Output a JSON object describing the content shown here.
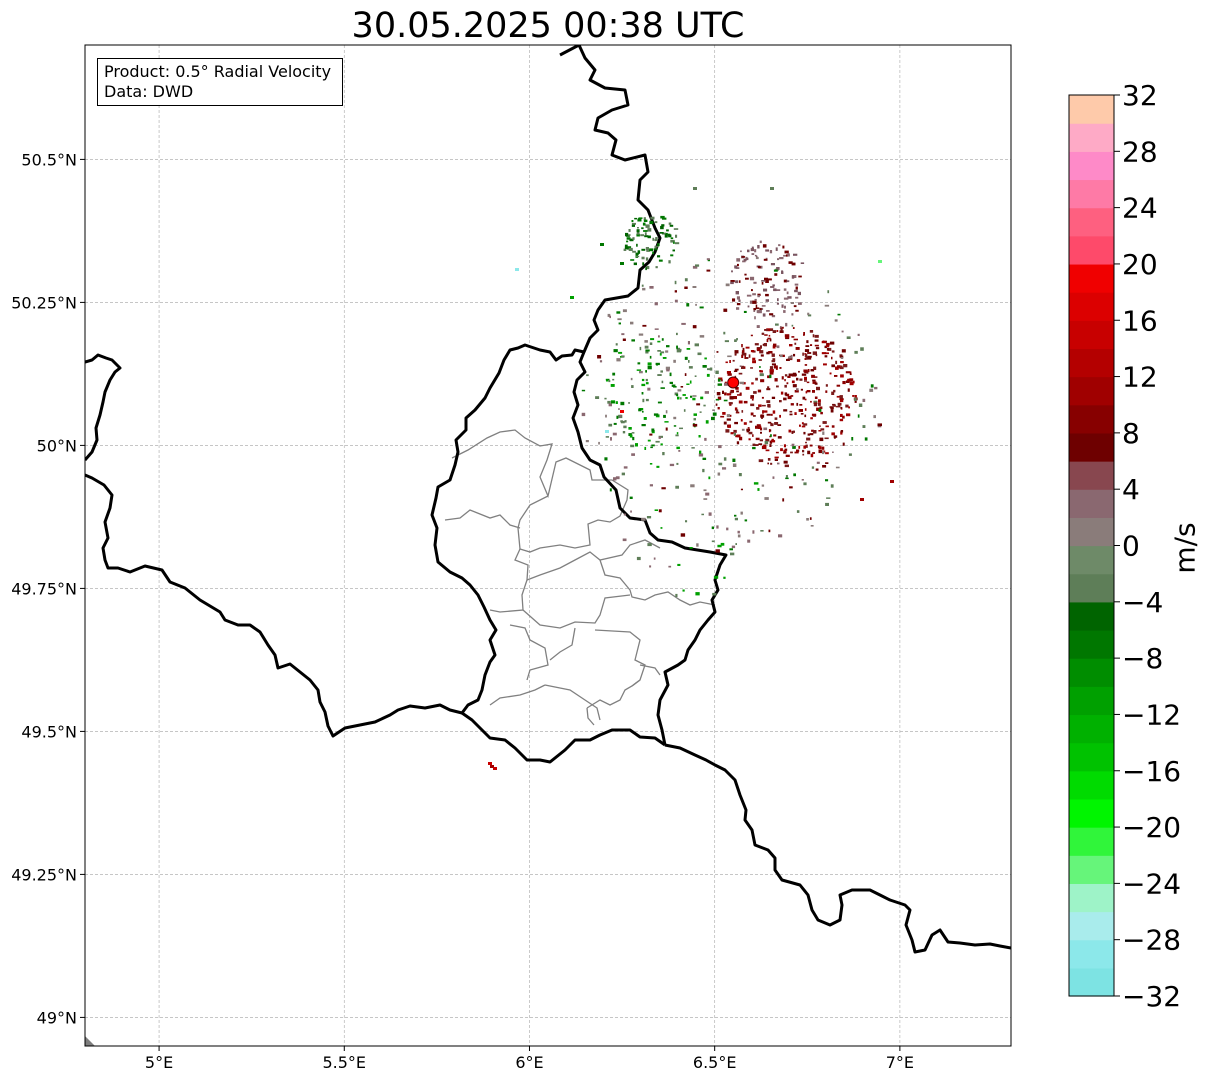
{
  "title": "30.05.2025 00:38 UTC",
  "info": {
    "product_line": "Product: 0.5° Radial Velocity",
    "data_line": "Data: DWD"
  },
  "map": {
    "lon_ticks": [
      {
        "value": 5.0,
        "label": "5°E"
      },
      {
        "value": 5.5,
        "label": "5.5°E"
      },
      {
        "value": 6.0,
        "label": "6°E"
      },
      {
        "value": 6.5,
        "label": "6.5°E"
      },
      {
        "value": 7.0,
        "label": "7°E"
      }
    ],
    "lat_ticks": [
      {
        "value": 49.0,
        "label": "49°N"
      },
      {
        "value": 49.25,
        "label": "49.25°N"
      },
      {
        "value": 49.5,
        "label": "49.5°N"
      },
      {
        "value": 49.75,
        "label": "49.75°N"
      },
      {
        "value": 50.0,
        "label": "50°N"
      },
      {
        "value": 50.25,
        "label": "50.25°N"
      },
      {
        "value": 50.5,
        "label": "50.5°N"
      }
    ],
    "lon_range": [
      4.8,
      7.3
    ],
    "lat_range": [
      48.95,
      50.7
    ],
    "grid": "on, dashed",
    "radar_site": {
      "lon": 6.55,
      "lat": 50.11,
      "color": "#ff0000"
    },
    "border_color": "#000000",
    "district_color": "#808080"
  },
  "colorbar": {
    "unit": "m/s",
    "min": -32,
    "max": 32,
    "step": 2,
    "tick_labels": [
      "32",
      "28",
      "24",
      "20",
      "16",
      "12",
      "8",
      "4",
      "0",
      "−4",
      "−8",
      "−12",
      "−16",
      "−20",
      "−24",
      "−28",
      "−32"
    ],
    "colors": [
      "#7de3e3",
      "#8ce8ea",
      "#a9ecec",
      "#9ef3c8",
      "#66f57a",
      "#30f53a",
      "#00f500",
      "#00db00",
      "#00c200",
      "#00b100",
      "#00a000",
      "#008d00",
      "#007700",
      "#006400",
      "#5e7e58",
      "#6e8a68",
      "#8a7c7a",
      "#8a6870",
      "#88474f",
      "#6e0000",
      "#870000",
      "#a00000",
      "#b40000",
      "#c80000",
      "#dc0000",
      "#f00000",
      "#fe4a6a",
      "#fe6080",
      "#fe7aa6",
      "#fe8ac8",
      "#feaac6",
      "#fecaaa"
    ]
  }
}
